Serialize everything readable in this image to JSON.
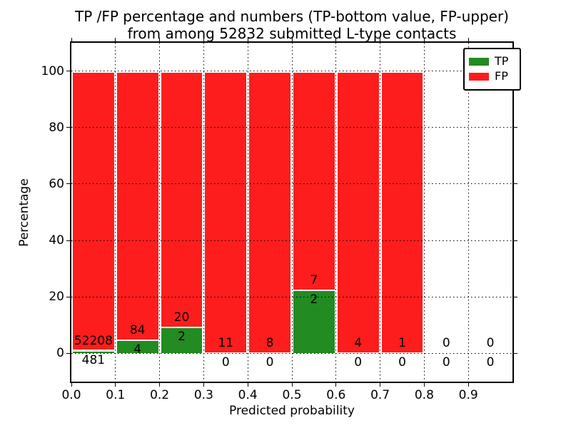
{
  "figure": {
    "title_line1": "TP /FP percentage and numbers (TP-bottom value, FP-upper)",
    "title_line2": "from among 52832 submitted L-type contacts",
    "background_color": "#ffffff"
  },
  "chart_data": {
    "type": "bar",
    "variant": "stacked-percentage-histogram",
    "title": "TP /FP percentage and numbers (TP-bottom value, FP-upper)\nfrom among 52832 submitted L-type contacts",
    "xlabel": "Predicted probability",
    "ylabel": "Percentage",
    "xlim": [
      0.0,
      1.0
    ],
    "ylim": [
      -10,
      110
    ],
    "bin_width": 0.1,
    "bin_starts": [
      0.0,
      0.1,
      0.2,
      0.3,
      0.4,
      0.5,
      0.6,
      0.7,
      0.8,
      0.9
    ],
    "x_tick_labels": [
      "0.0",
      "0.1",
      "0.2",
      "0.3",
      "0.4",
      "0.5",
      "0.6",
      "0.7",
      "0.8",
      "0.9"
    ],
    "y_tick_values": [
      0,
      20,
      40,
      60,
      80,
      100
    ],
    "grid": {
      "visible": true,
      "style": "dotted",
      "color": "#000000"
    },
    "bar_edge_color": "#ffffff",
    "bar_height_mode": "percent_of_bin_total",
    "series": [
      {
        "name": "TP",
        "color": "#228b22",
        "counts": [
          481,
          4,
          2,
          0,
          0,
          2,
          0,
          0,
          0,
          0
        ]
      },
      {
        "name": "FP",
        "color": "#fd1d1d",
        "counts": [
          52208,
          84,
          20,
          11,
          8,
          7,
          4,
          1,
          0,
          0
        ]
      }
    ],
    "tp_percent_by_bin": [
      0.91,
      4.55,
      9.09,
      0.0,
      0.0,
      22.22,
      0.0,
      0.0,
      null,
      null
    ],
    "total_contacts": 52832,
    "legend": {
      "position": "upper-right",
      "entries": [
        {
          "label": "TP",
          "color": "#228b22"
        },
        {
          "label": "FP",
          "color": "#fd1d1d"
        }
      ]
    }
  }
}
